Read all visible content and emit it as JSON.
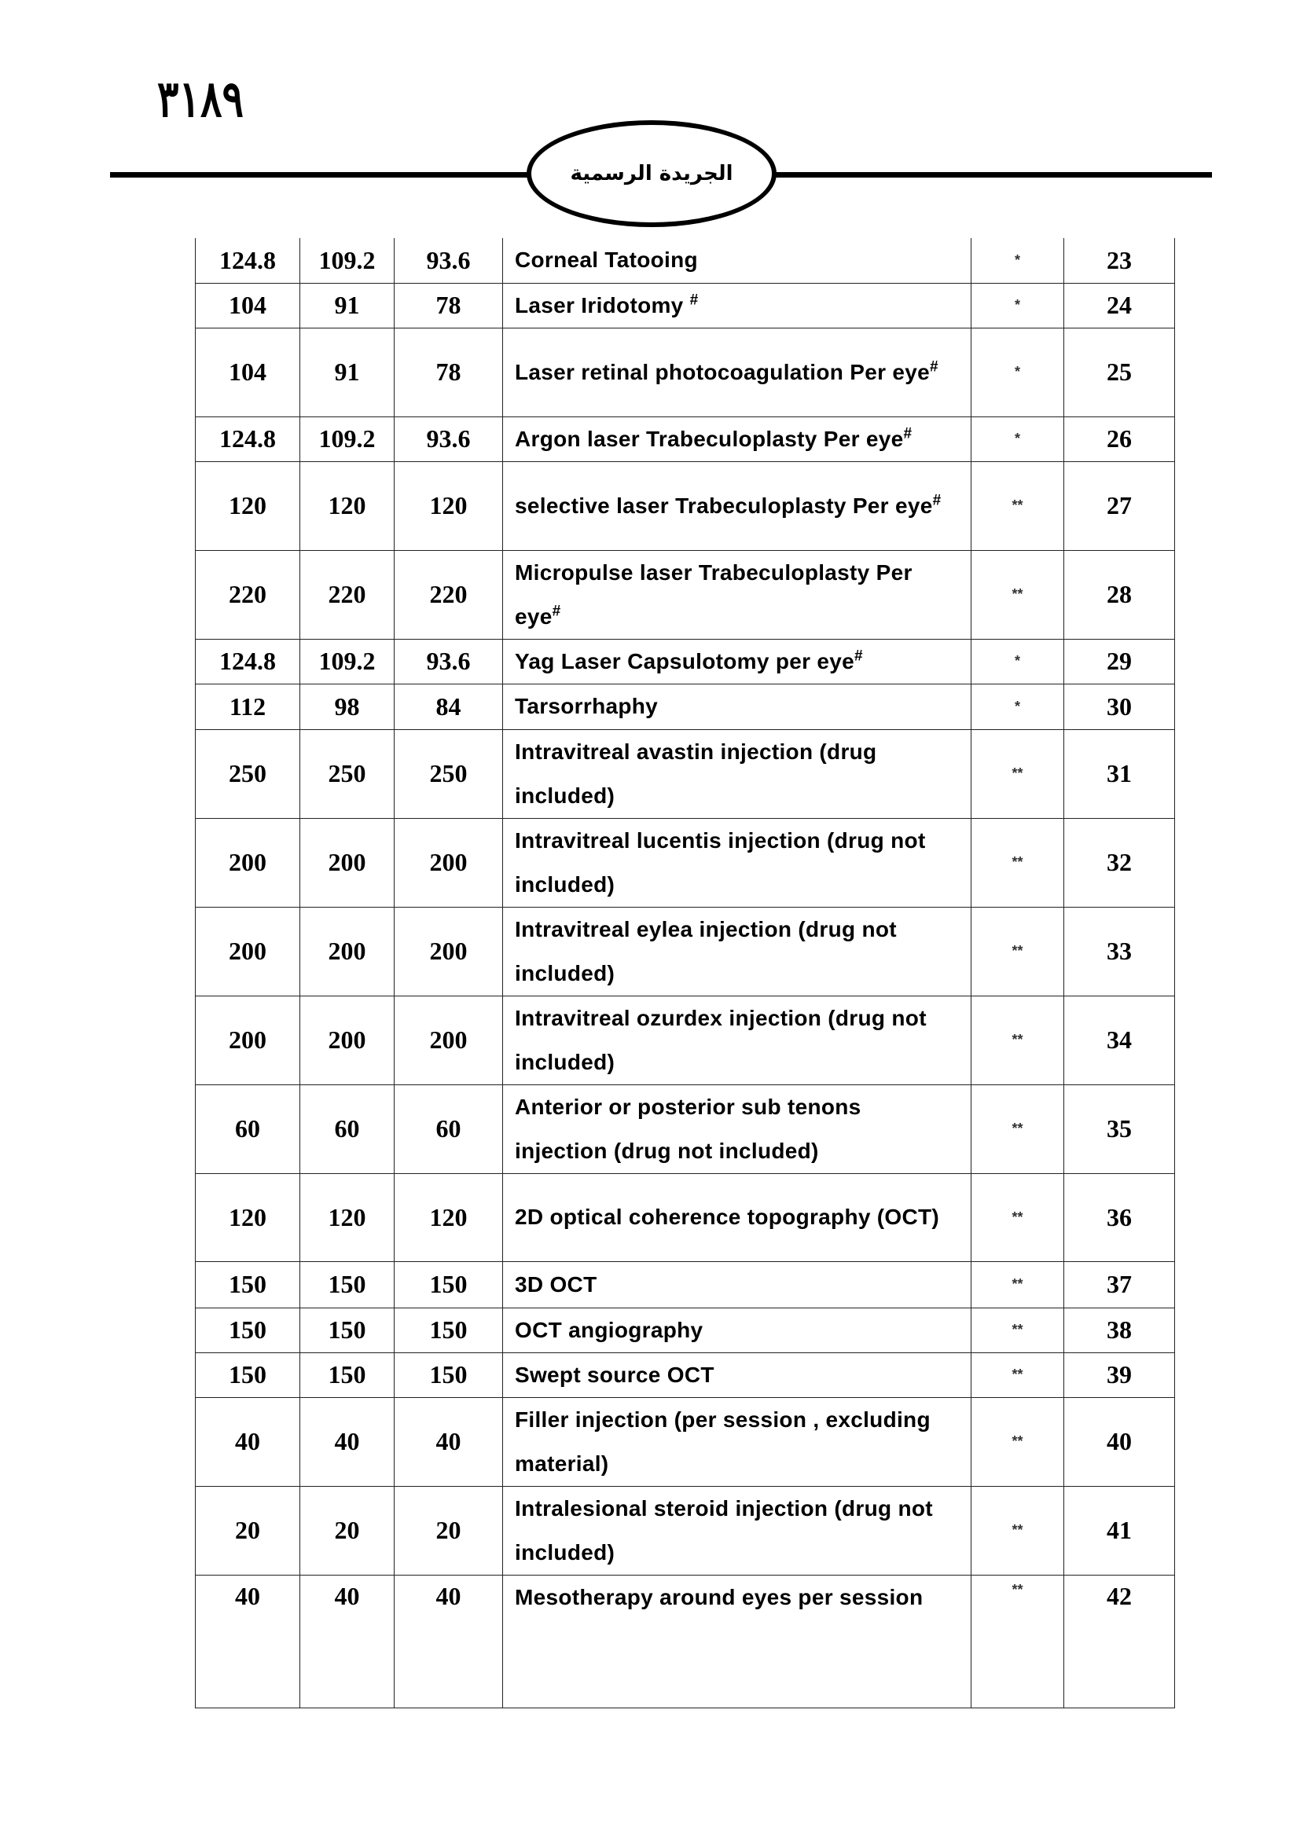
{
  "header": {
    "page_number": "٣١٨٩",
    "publication_title": "الجريدة الرسمية"
  },
  "table": {
    "rows": [
      {
        "c1": "124.8",
        "c2": "109.2",
        "c3": "93.6",
        "desc": "Corneal Tatooing",
        "sup": "",
        "mark": "*",
        "no": "23"
      },
      {
        "c1": "104",
        "c2": "91",
        "c3": "78",
        "desc": "Laser Iridotomy ",
        "sup": "#",
        "mark": "*",
        "no": "24"
      },
      {
        "c1": "104",
        "c2": "91",
        "c3": "78",
        "desc": "Laser retinal photocoagulation Per eye",
        "sup": "#",
        "mark": "*",
        "no": "25"
      },
      {
        "c1": "124.8",
        "c2": "109.2",
        "c3": "93.6",
        "desc": "Argon laser Trabeculoplasty Per eye",
        "sup": "#",
        "mark": "*",
        "no": "26"
      },
      {
        "c1": "120",
        "c2": "120",
        "c3": "120",
        "desc": "selective laser Trabeculoplasty Per eye",
        "sup": "#",
        "mark": "**",
        "no": "27"
      },
      {
        "c1": "220",
        "c2": "220",
        "c3": "220",
        "desc": "Micropulse  laser Trabeculoplasty Per eye",
        "sup": "#",
        "mark": "**",
        "no": "28"
      },
      {
        "c1": "124.8",
        "c2": "109.2",
        "c3": "93.6",
        "desc": "Yag Laser Capsulotomy per eye",
        "sup": "#",
        "mark": "*",
        "no": "29"
      },
      {
        "c1": "112",
        "c2": "98",
        "c3": "84",
        "desc": "Tarsorrhaphy",
        "sup": "",
        "mark": "*",
        "no": "30"
      },
      {
        "c1": "250",
        "c2": "250",
        "c3": "250",
        "desc": "Intravitreal avastin injection (drug included)",
        "sup": "",
        "mark": "**",
        "no": "31"
      },
      {
        "c1": "200",
        "c2": "200",
        "c3": "200",
        "desc": "Intravitreal lucentis injection (drug not included)",
        "sup": "",
        "mark": "**",
        "no": "32"
      },
      {
        "c1": "200",
        "c2": "200",
        "c3": "200",
        "desc": "Intravitreal eylea injection (drug  not included)",
        "sup": "",
        "mark": "**",
        "no": "33"
      },
      {
        "c1": "200",
        "c2": "200",
        "c3": "200",
        "desc": "Intravitreal ozurdex injection (drug not included)",
        "sup": "",
        "mark": "**",
        "no": "34"
      },
      {
        "c1": "60",
        "c2": "60",
        "c3": "60",
        "desc": "Anterior or posterior sub tenons injection (drug not included)",
        "sup": "",
        "mark": "**",
        "no": "35"
      },
      {
        "c1": "120",
        "c2": "120",
        "c3": "120",
        "desc": "2D optical coherence topography (OCT)",
        "sup": "",
        "mark": "**",
        "no": "36"
      },
      {
        "c1": "150",
        "c2": "150",
        "c3": "150",
        "desc": "3D OCT",
        "sup": "",
        "mark": "**",
        "no": "37"
      },
      {
        "c1": "150",
        "c2": "150",
        "c3": "150",
        "desc": "OCT angiography",
        "sup": "",
        "mark": "**",
        "no": "38"
      },
      {
        "c1": "150",
        "c2": "150",
        "c3": "150",
        "desc": "Swept source OCT",
        "sup": "",
        "mark": "**",
        "no": "39"
      },
      {
        "c1": "40",
        "c2": "40",
        "c3": "40",
        "desc": "Filler injection (per session , excluding material)",
        "sup": "",
        "mark": "**",
        "no": "40"
      },
      {
        "c1": "20",
        "c2": "20",
        "c3": "20",
        "desc": "Intralesional steroid injection (drug not included)",
        "sup": "",
        "mark": "**",
        "no": "41"
      },
      {
        "c1": "40",
        "c2": "40",
        "c3": "40",
        "desc": "Mesotherapy around eyes per session",
        "sup": "",
        "mark": "**",
        "no": "42"
      }
    ]
  }
}
